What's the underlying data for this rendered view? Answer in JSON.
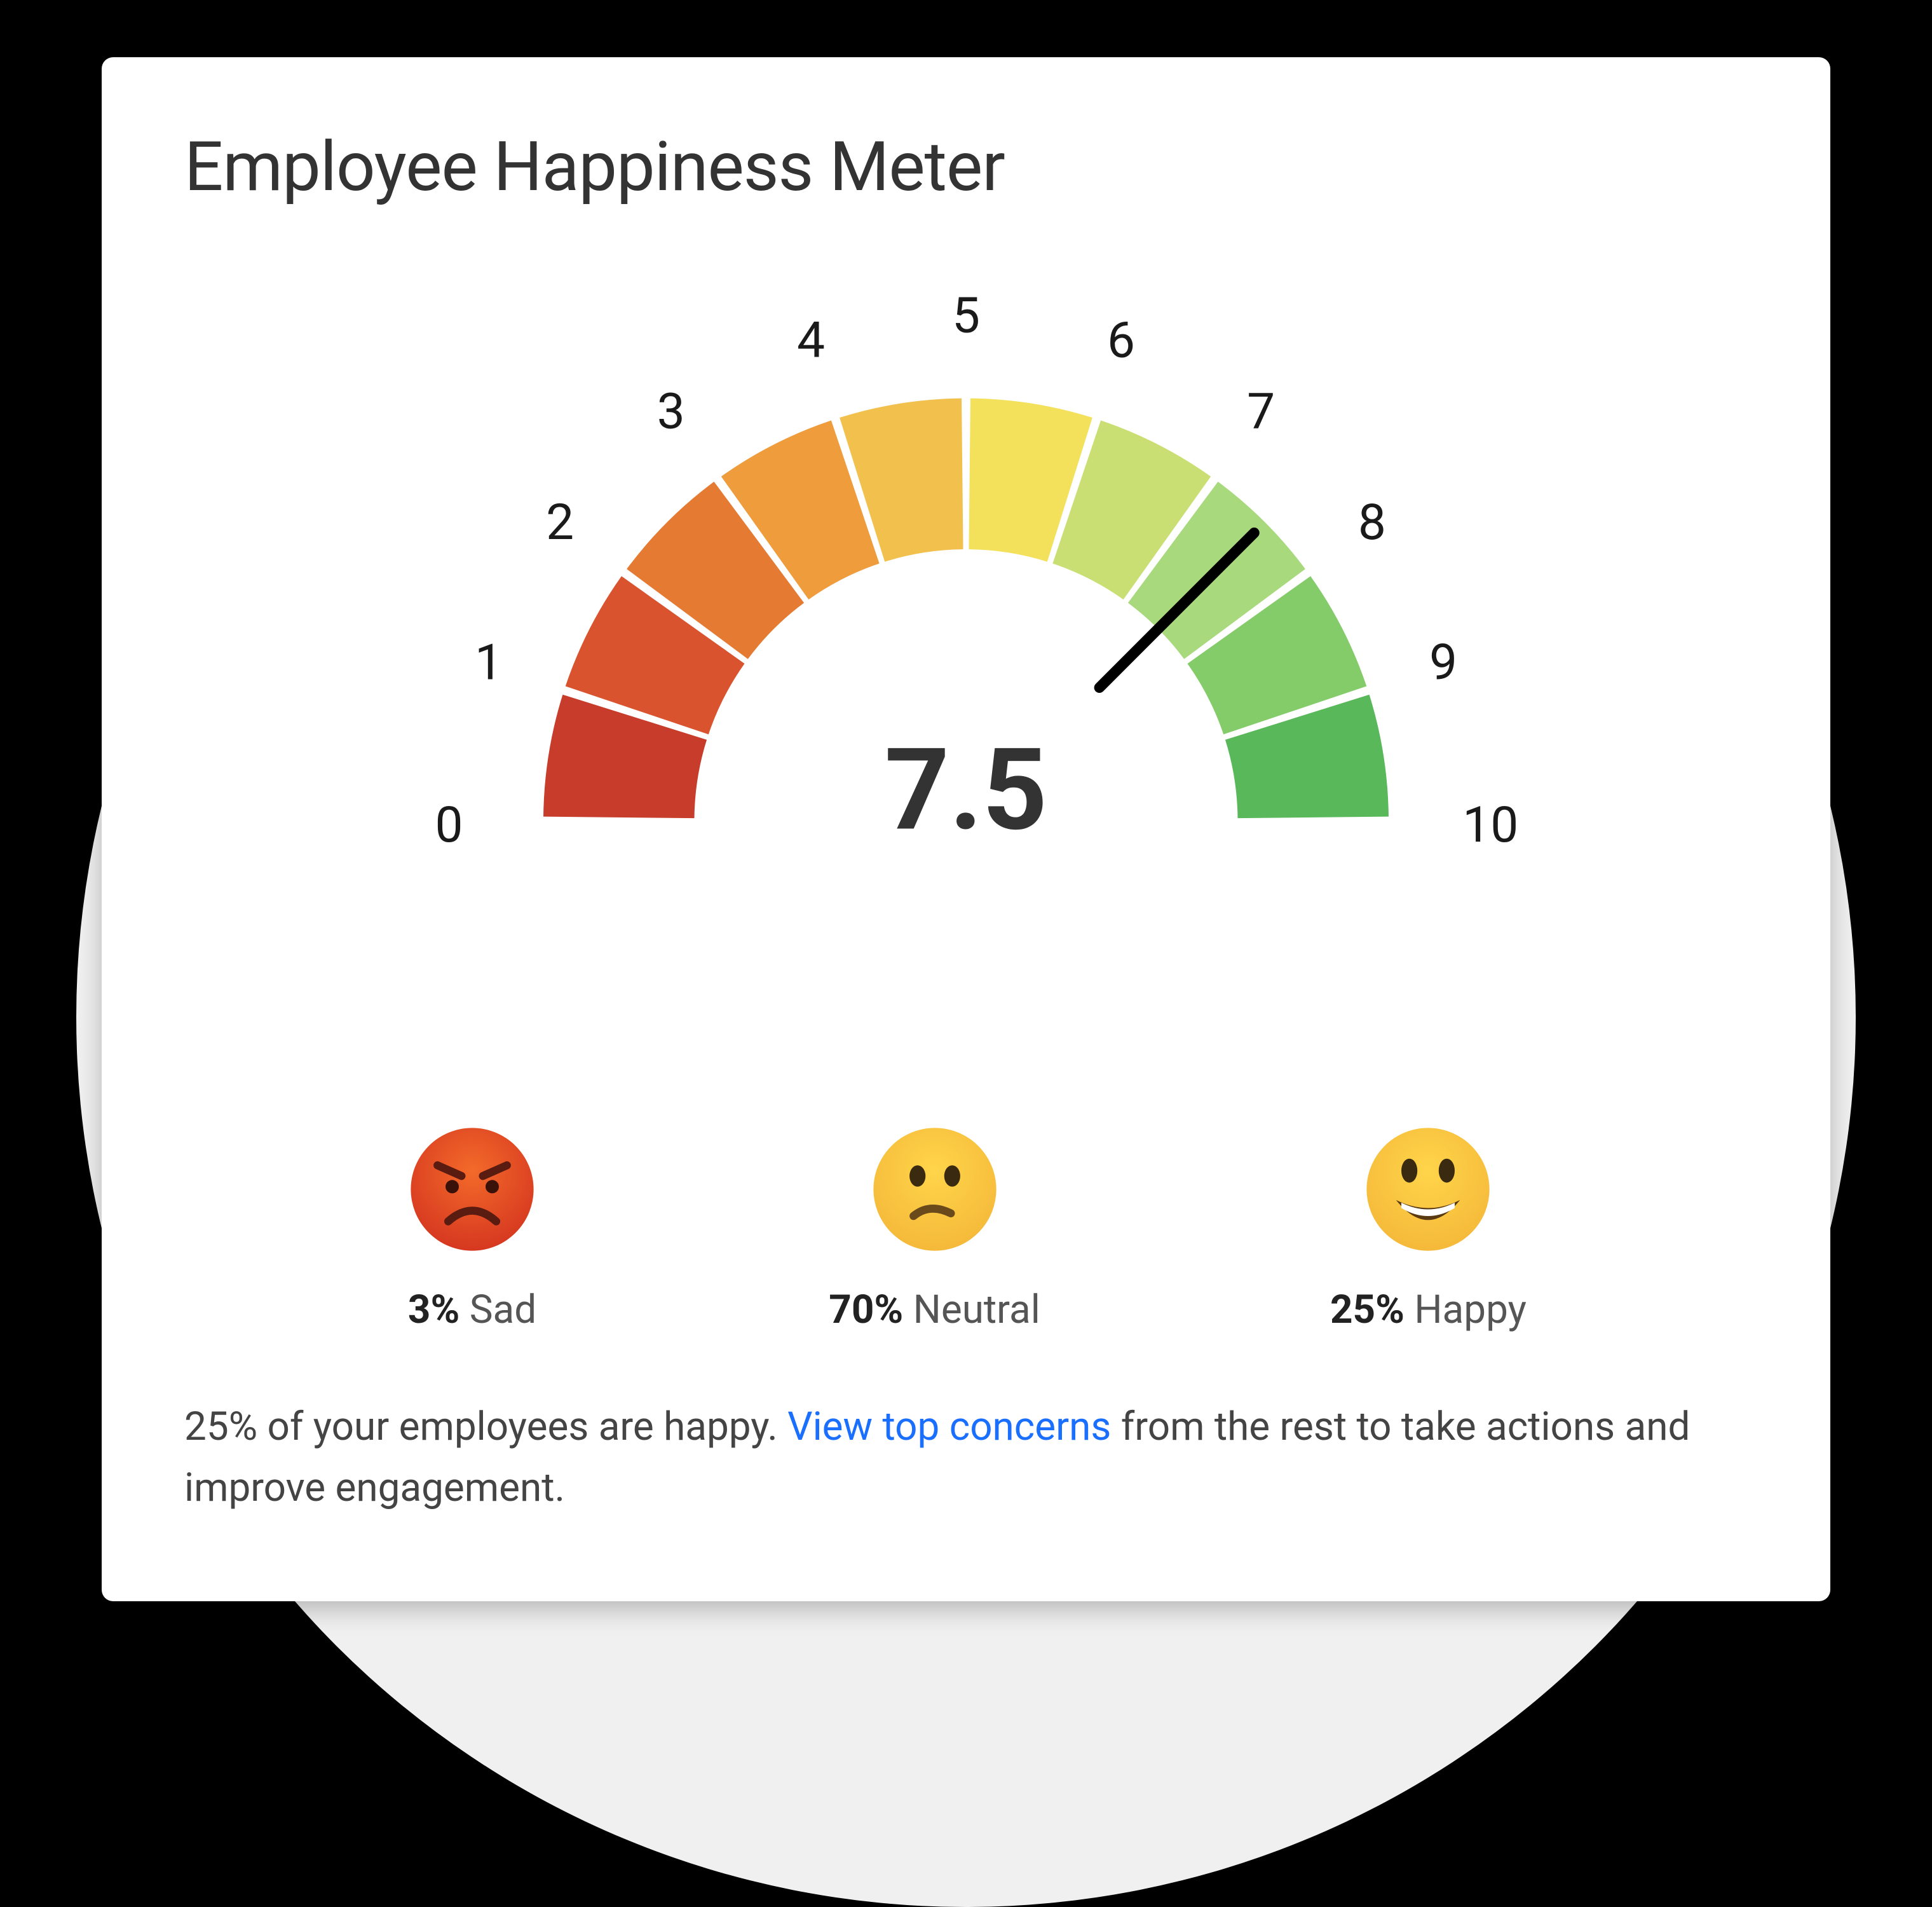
{
  "card": {
    "title": "Employee Happiness Meter",
    "background_color": "#ffffff",
    "title_color": "#333333",
    "title_fontsize": 108
  },
  "gauge": {
    "type": "gauge",
    "value": 7.5,
    "value_text": "7.5",
    "min": 0,
    "max": 10,
    "tick_labels": [
      "0",
      "1",
      "2",
      "3",
      "4",
      "5",
      "6",
      "7",
      "8",
      "9",
      "10"
    ],
    "tick_fontsize": 66,
    "tick_color": "#1a1a1a",
    "segment_colors": [
      "#c83c2b",
      "#d9542e",
      "#e57a33",
      "#ef9c3d",
      "#f2c04c",
      "#f3e15c",
      "#c9df74",
      "#a8d97d",
      "#84cc6a",
      "#59b85a"
    ],
    "segment_gap_deg": 1.2,
    "outer_radius": 560,
    "inner_radius": 360,
    "needle_color": "#000000",
    "needle_width": 14,
    "value_fontsize": 150,
    "value_color": "#333333",
    "value_fontweight": 700
  },
  "moods": {
    "items": [
      {
        "key": "sad",
        "pct": "3%",
        "label": "Sad",
        "emoji_bg": [
          "#f36a2a",
          "#d63820"
        ],
        "face": "angry"
      },
      {
        "key": "neutral",
        "pct": "70%",
        "label": "Neutral",
        "emoji_bg": [
          "#ffd54a",
          "#f5b93a"
        ],
        "face": "confused"
      },
      {
        "key": "happy",
        "pct": "25%",
        "label": "Happy",
        "emoji_bg": [
          "#ffd54a",
          "#f5b93a"
        ],
        "face": "grin"
      }
    ],
    "label_fontsize": 62,
    "pct_color": "#222222",
    "label_color": "#555555"
  },
  "summary": {
    "text_before": "25% of your employees are happy. ",
    "link_text": "View top concerns",
    "text_after": " from the rest to take actions and improve engagement.",
    "fontsize": 62,
    "text_color": "#444444",
    "link_color": "#1a6fff"
  }
}
